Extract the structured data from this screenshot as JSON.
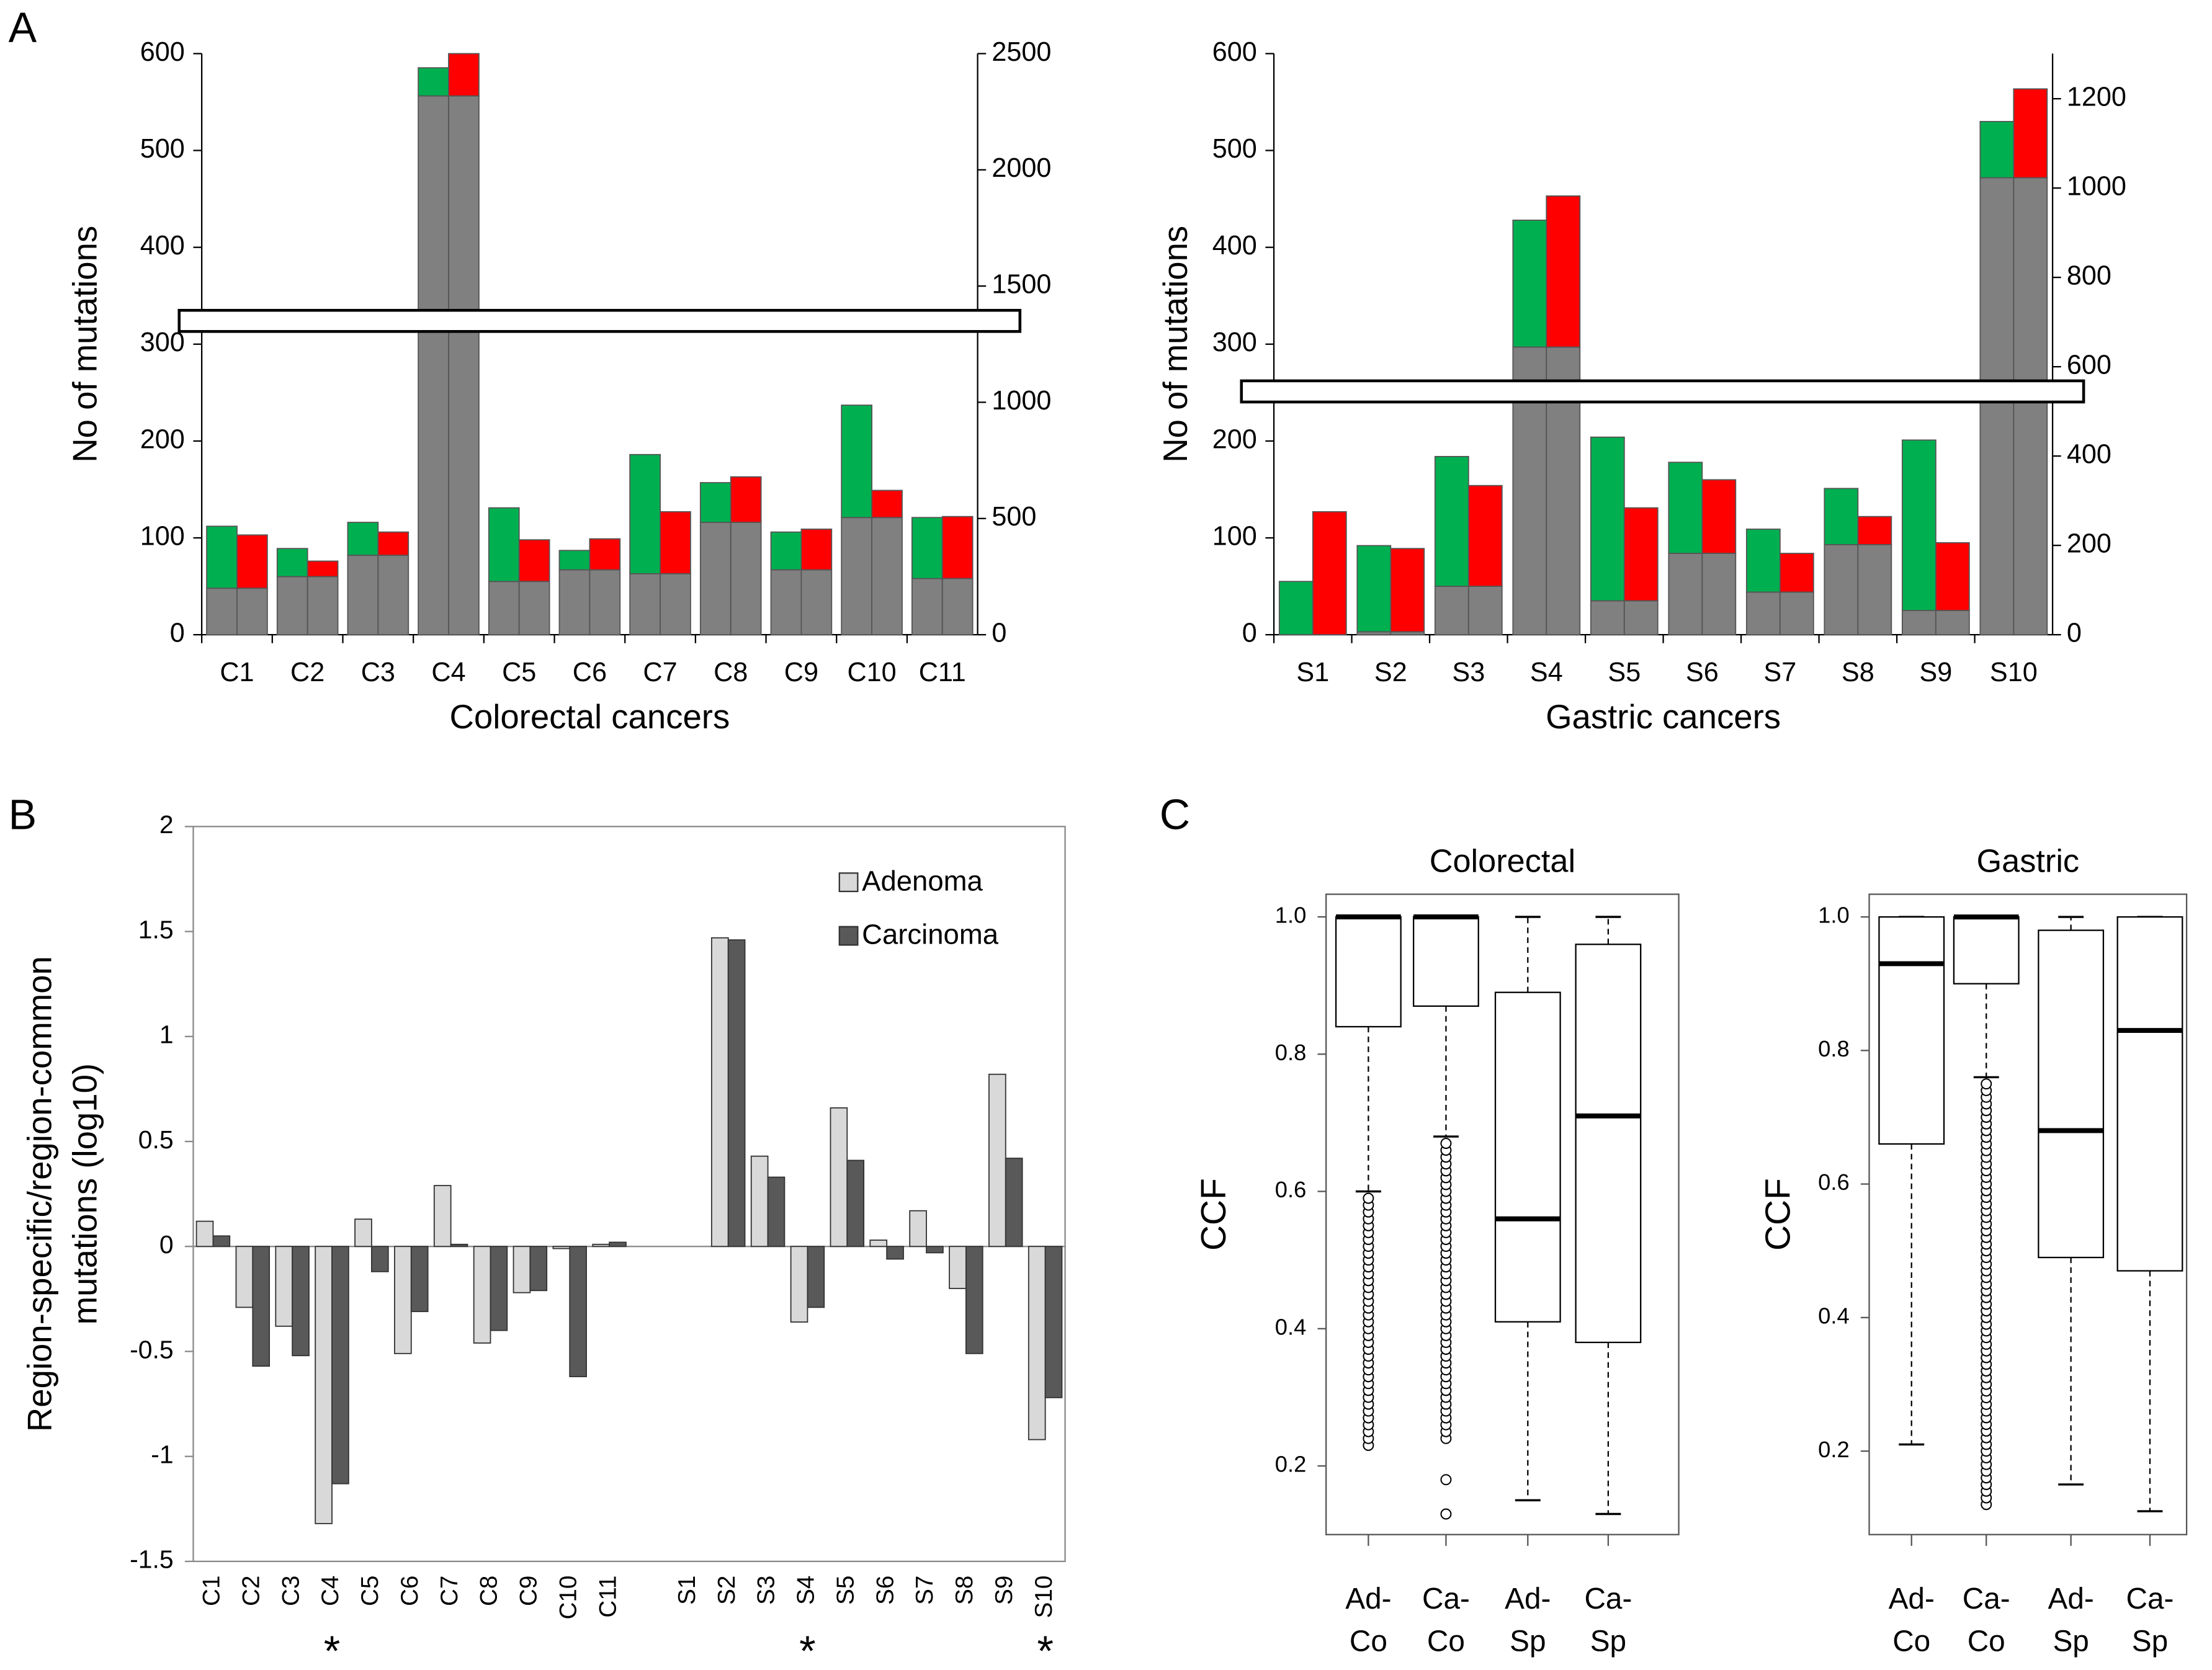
{
  "panel_labels": [
    "A",
    "B",
    "C"
  ],
  "chart_data": [
    {
      "type": "bar",
      "stacked": true,
      "ylabel": "No of mutations",
      "xlabel": "Colorectal cancers",
      "categories": [
        "C1",
        "C2",
        "C3",
        "C4",
        "C5",
        "C6",
        "C7",
        "C8",
        "C9",
        "C10",
        "C11"
      ],
      "axis": [
        "y",
        "y",
        "y",
        "y2",
        "y",
        "y",
        "y",
        "y",
        "y",
        "y",
        "y"
      ],
      "series": [
        {
          "color": "#808080",
          "values": [
            48,
            60,
            82,
            2318,
            55,
            67,
            63,
            116,
            67,
            121,
            58
          ]
        },
        {
          "color": "#00b050",
          "values": [
            64,
            29,
            34,
            121,
            76,
            20,
            123,
            41,
            39,
            116,
            63
          ]
        },
        {
          "color": "#ff0000",
          "values": [
            55,
            16,
            24,
            182,
            43,
            32,
            64,
            47,
            42,
            28,
            64
          ]
        }
      ],
      "ylim": [
        0,
        600
      ],
      "yticks": [
        0,
        100,
        200,
        300,
        400,
        500,
        600
      ],
      "y2lim": [
        0,
        2500
      ],
      "y2ticks": [
        0,
        500,
        1000,
        1500,
        2000,
        2500
      ]
    },
    {
      "type": "bar",
      "stacked": true,
      "ylabel": "No of mutations",
      "xlabel": "Gastric cancers",
      "categories": [
        "S1",
        "S2",
        "S3",
        "S4",
        "S5",
        "S6",
        "S7",
        "S8",
        "S9",
        "S10"
      ],
      "axis": [
        "y",
        "y",
        "y",
        "y",
        "y",
        "y",
        "y",
        "y",
        "y",
        "y2"
      ],
      "series": [
        {
          "color": "#808080",
          "values": [
            0,
            3,
            50,
            297,
            35,
            84,
            44,
            93,
            25,
            1023
          ]
        },
        {
          "color": "#00b050",
          "values": [
            55,
            89,
            134,
            131,
            169,
            94,
            65,
            58,
            176,
            126
          ]
        },
        {
          "color": "#ff0000",
          "values": [
            127,
            86,
            104,
            156,
            96,
            76,
            40,
            29,
            70,
            199
          ]
        }
      ],
      "ylim": [
        0,
        600
      ],
      "yticks": [
        0,
        100,
        200,
        300,
        400,
        500,
        600
      ],
      "y2lim": [
        0,
        1301
      ],
      "y2ticks": [
        0,
        200,
        400,
        600,
        800,
        1000,
        1200
      ]
    },
    {
      "type": "bar",
      "ylabel": [
        "Region-specific/region-common",
        "mutations (log10)"
      ],
      "categories": [
        "C1",
        "C2",
        "C3",
        "C4",
        "C5",
        "C6",
        "C7",
        "C8",
        "C9",
        "C10",
        "C11",
        null,
        "S1",
        "S2",
        "S3",
        "S4",
        "S5",
        "S6",
        "S7",
        "S8",
        "S9",
        "S10"
      ],
      "series": [
        {
          "name": "Adenoma",
          "color": "#d9d9d9",
          "values": [
            0.12,
            -0.29,
            -0.38,
            -1.32,
            0.13,
            -0.51,
            0.29,
            -0.46,
            -0.22,
            -0.01,
            0.01,
            null,
            null,
            1.47,
            0.43,
            -0.36,
            0.66,
            0.03,
            0.17,
            -0.2,
            0.82,
            -0.92
          ]
        },
        {
          "name": "Carcinoma",
          "color": "#595959",
          "values": [
            0.05,
            -0.57,
            -0.52,
            -1.13,
            -0.12,
            -0.31,
            0.01,
            -0.4,
            -0.21,
            -0.62,
            0.02,
            null,
            null,
            1.46,
            0.33,
            -0.29,
            0.41,
            -0.06,
            -0.03,
            -0.51,
            0.42,
            -0.72
          ]
        }
      ],
      "ylim": [
        -1.5,
        2
      ],
      "yticks": [
        -1.5,
        -1,
        -0.5,
        0,
        0.5,
        1,
        1.5,
        2
      ],
      "annotations": [
        {
          "text": "*",
          "category": "C4"
        },
        {
          "text": "*",
          "category": "S4"
        },
        {
          "text": "*",
          "category": "S10"
        }
      ],
      "legend": "top-right"
    },
    {
      "type": "box",
      "title": "Colorectal",
      "ylabel": "CCF",
      "categories": [
        [
          "Ad-",
          "Co"
        ],
        [
          "Ca-",
          "Co"
        ],
        [
          "Ad-",
          "Sp"
        ],
        [
          "Ca-",
          "Sp"
        ]
      ],
      "ylim": [
        0.1,
        1.033
      ],
      "yticks": [
        0.2,
        0.4,
        0.6,
        0.8,
        {
          "value": 1,
          "label": "1.0"
        }
      ],
      "boxes": [
        {
          "low": 0.6,
          "q1": 0.84,
          "median": 1,
          "q3": 1,
          "high": 1,
          "outliers": [
            0.23,
            0.24,
            0.25,
            0.26,
            0.27,
            0.28,
            0.29,
            0.3,
            0.31,
            0.32,
            0.33,
            0.34,
            0.35,
            0.36,
            0.37,
            0.38,
            0.39,
            0.4,
            0.41,
            0.42,
            0.43,
            0.44,
            0.45,
            0.46,
            0.47,
            0.48,
            0.49,
            0.5,
            0.51,
            0.52,
            0.53,
            0.54,
            0.55,
            0.56,
            0.57,
            0.58,
            0.59
          ]
        },
        {
          "low": 0.68,
          "q1": 0.87,
          "median": 1,
          "q3": 1,
          "high": 1,
          "outliers": [
            0.13,
            0.18,
            0.24,
            0.25,
            0.26,
            0.27,
            0.28,
            0.29,
            0.3,
            0.31,
            0.32,
            0.33,
            0.34,
            0.35,
            0.36,
            0.37,
            0.38,
            0.39,
            0.4,
            0.41,
            0.42,
            0.43,
            0.44,
            0.45,
            0.46,
            0.47,
            0.48,
            0.49,
            0.5,
            0.51,
            0.52,
            0.53,
            0.54,
            0.55,
            0.56,
            0.57,
            0.58,
            0.59,
            0.6,
            0.61,
            0.62,
            0.63,
            0.64,
            0.65,
            0.66,
            0.67
          ]
        },
        {
          "low": 0.15,
          "q1": 0.41,
          "median": 0.56,
          "q3": 0.89,
          "high": 1,
          "outliers": []
        },
        {
          "low": 0.13,
          "q1": 0.38,
          "median": 0.71,
          "q3": 0.96,
          "high": 1,
          "outliers": []
        }
      ]
    },
    {
      "type": "box",
      "title": "Gastric",
      "ylabel": "CCF",
      "categories": [
        [
          "Ad-",
          "Co"
        ],
        [
          "Ca-",
          "Co"
        ],
        [
          "Ad-",
          "Sp"
        ],
        [
          "Ca-",
          "Sp"
        ]
      ],
      "ylim": [
        0.075,
        1.034
      ],
      "yticks": [
        0.2,
        0.4,
        0.6,
        0.8,
        {
          "value": 1,
          "label": "1.0"
        }
      ],
      "boxes": [
        {
          "low": 0.21,
          "q1": 0.66,
          "median": 0.93,
          "q3": 1,
          "high": 1,
          "outliers": []
        },
        {
          "low": 0.76,
          "q1": 0.9,
          "median": 1,
          "q3": 1,
          "high": 1,
          "outliers": [
            0.12,
            0.13,
            0.14,
            0.15,
            0.16,
            0.17,
            0.18,
            0.19,
            0.2,
            0.21,
            0.22,
            0.23,
            0.24,
            0.25,
            0.26,
            0.27,
            0.28,
            0.29,
            0.3,
            0.31,
            0.32,
            0.33,
            0.34,
            0.35,
            0.36,
            0.37,
            0.38,
            0.39,
            0.4,
            0.41,
            0.42,
            0.43,
            0.44,
            0.45,
            0.46,
            0.47,
            0.48,
            0.49,
            0.5,
            0.51,
            0.52,
            0.53,
            0.54,
            0.55,
            0.56,
            0.57,
            0.58,
            0.59,
            0.6,
            0.61,
            0.62,
            0.63,
            0.64,
            0.65,
            0.66,
            0.67,
            0.68,
            0.69,
            0.7,
            0.71,
            0.72,
            0.73,
            0.74,
            0.75
          ]
        },
        {
          "low": 0.15,
          "q1": 0.49,
          "median": 0.68,
          "q3": 0.98,
          "high": 1,
          "outliers": []
        },
        {
          "low": 0.11,
          "q1": 0.47,
          "median": 0.83,
          "q3": 1,
          "high": 1,
          "outliers": []
        }
      ]
    }
  ]
}
